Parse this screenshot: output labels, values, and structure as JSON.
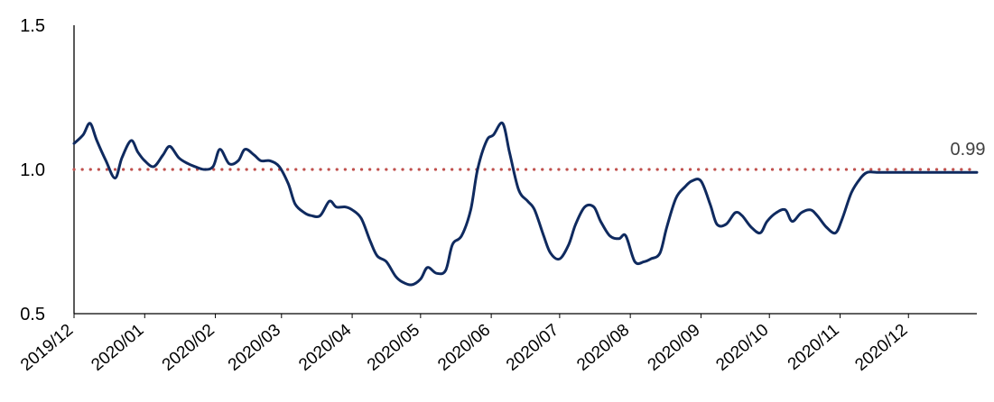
{
  "chart_data": {
    "type": "line",
    "title": "",
    "xlabel": "",
    "ylabel": "",
    "ylim": [
      0.5,
      1.5
    ],
    "y_ticks": [
      "0.5",
      "1.0",
      "1.5"
    ],
    "x_tick_labels": [
      "2019/12",
      "2020/01",
      "2020/02",
      "2020/03",
      "2020/04",
      "2020/05",
      "2020/06",
      "2020/07",
      "2020/08",
      "2020/09",
      "2020/10",
      "2020/11",
      "2020/12"
    ],
    "grid": false,
    "legend": "none",
    "reference_line": {
      "value": 1.0,
      "style": "dotted",
      "color": "#c0504d"
    },
    "annotation": {
      "text": "0.99"
    },
    "series": [
      {
        "color": "#0f2a5f",
        "x": [
          "2019/12/01",
          "2019/12/05",
          "2019/12/08",
          "2019/12/11",
          "2019/12/15",
          "2019/12/19",
          "2019/12/22",
          "2019/12/26",
          "2019/12/29",
          "2020/01/01",
          "2020/01/05",
          "2020/01/09",
          "2020/01/12",
          "2020/01/16",
          "2020/01/20",
          "2020/01/23",
          "2020/01/27",
          "2020/01/31",
          "2020/02/03",
          "2020/02/07",
          "2020/02/11",
          "2020/02/14",
          "2020/02/18",
          "2020/02/21",
          "2020/02/25",
          "2020/02/29",
          "2020/03/04",
          "2020/03/07",
          "2020/03/11",
          "2020/03/14",
          "2020/03/18",
          "2020/03/22",
          "2020/03/25",
          "2020/03/29",
          "2020/04/01",
          "2020/04/05",
          "2020/04/09",
          "2020/04/12",
          "2020/04/16",
          "2020/04/20",
          "2020/04/23",
          "2020/04/27",
          "2020/05/01",
          "2020/05/04",
          "2020/05/08",
          "2020/05/12",
          "2020/05/15",
          "2020/05/19",
          "2020/05/23",
          "2020/05/26",
          "2020/05/30",
          "2020/06/02",
          "2020/06/06",
          "2020/06/09",
          "2020/06/13",
          "2020/06/17",
          "2020/06/20",
          "2020/06/24",
          "2020/06/27",
          "2020/07/01",
          "2020/07/05",
          "2020/07/08",
          "2020/07/12",
          "2020/07/16",
          "2020/07/19",
          "2020/07/23",
          "2020/07/27",
          "2020/07/30",
          "2020/08/03",
          "2020/08/07",
          "2020/08/10",
          "2020/08/14",
          "2020/08/17",
          "2020/08/21",
          "2020/08/25",
          "2020/08/28",
          "2020/09/01",
          "2020/09/05",
          "2020/09/08",
          "2020/09/12",
          "2020/09/16",
          "2020/09/19",
          "2020/09/23",
          "2020/09/27",
          "2020/09/30",
          "2020/10/04",
          "2020/10/08",
          "2020/10/11",
          "2020/10/15",
          "2020/10/19",
          "2020/10/22",
          "2020/10/26",
          "2020/10/30",
          "2020/11/02",
          "2020/11/06",
          "2020/11/10",
          "2020/11/13",
          "2020/11/17",
          "2020/11/20",
          "2020/11/24",
          "2020/11/28",
          "2020/12/01",
          "2020/12/05",
          "2020/12/09",
          "2020/12/12",
          "2020/12/16",
          "2020/12/20",
          "2020/12/23",
          "2020/12/27",
          "2020/12/31"
        ],
        "values": [
          1.09,
          1.12,
          1.16,
          1.1,
          1.03,
          0.97,
          1.04,
          1.1,
          1.06,
          1.03,
          1.01,
          1.05,
          1.08,
          1.04,
          1.02,
          1.01,
          1.0,
          1.01,
          1.07,
          1.02,
          1.03,
          1.07,
          1.05,
          1.03,
          1.03,
          1.01,
          0.95,
          0.88,
          0.85,
          0.84,
          0.84,
          0.89,
          0.87,
          0.87,
          0.86,
          0.83,
          0.75,
          0.7,
          0.68,
          0.63,
          0.61,
          0.6,
          0.62,
          0.66,
          0.64,
          0.65,
          0.74,
          0.77,
          0.86,
          1.0,
          1.1,
          1.12,
          1.16,
          1.06,
          0.93,
          0.89,
          0.86,
          0.77,
          0.71,
          0.69,
          0.74,
          0.81,
          0.87,
          0.87,
          0.82,
          0.77,
          0.76,
          0.77,
          0.68,
          0.68,
          0.69,
          0.71,
          0.8,
          0.9,
          0.94,
          0.96,
          0.96,
          0.88,
          0.81,
          0.81,
          0.85,
          0.84,
          0.8,
          0.78,
          0.82,
          0.85,
          0.86,
          0.82,
          0.85,
          0.86,
          0.84,
          0.8,
          0.78,
          0.83,
          0.92,
          0.97,
          0.99,
          0.99,
          0.99,
          0.99,
          0.99,
          0.99,
          0.99,
          0.99,
          0.99,
          0.99,
          0.99,
          0.99,
          0.99,
          0.99
        ]
      }
    ]
  }
}
